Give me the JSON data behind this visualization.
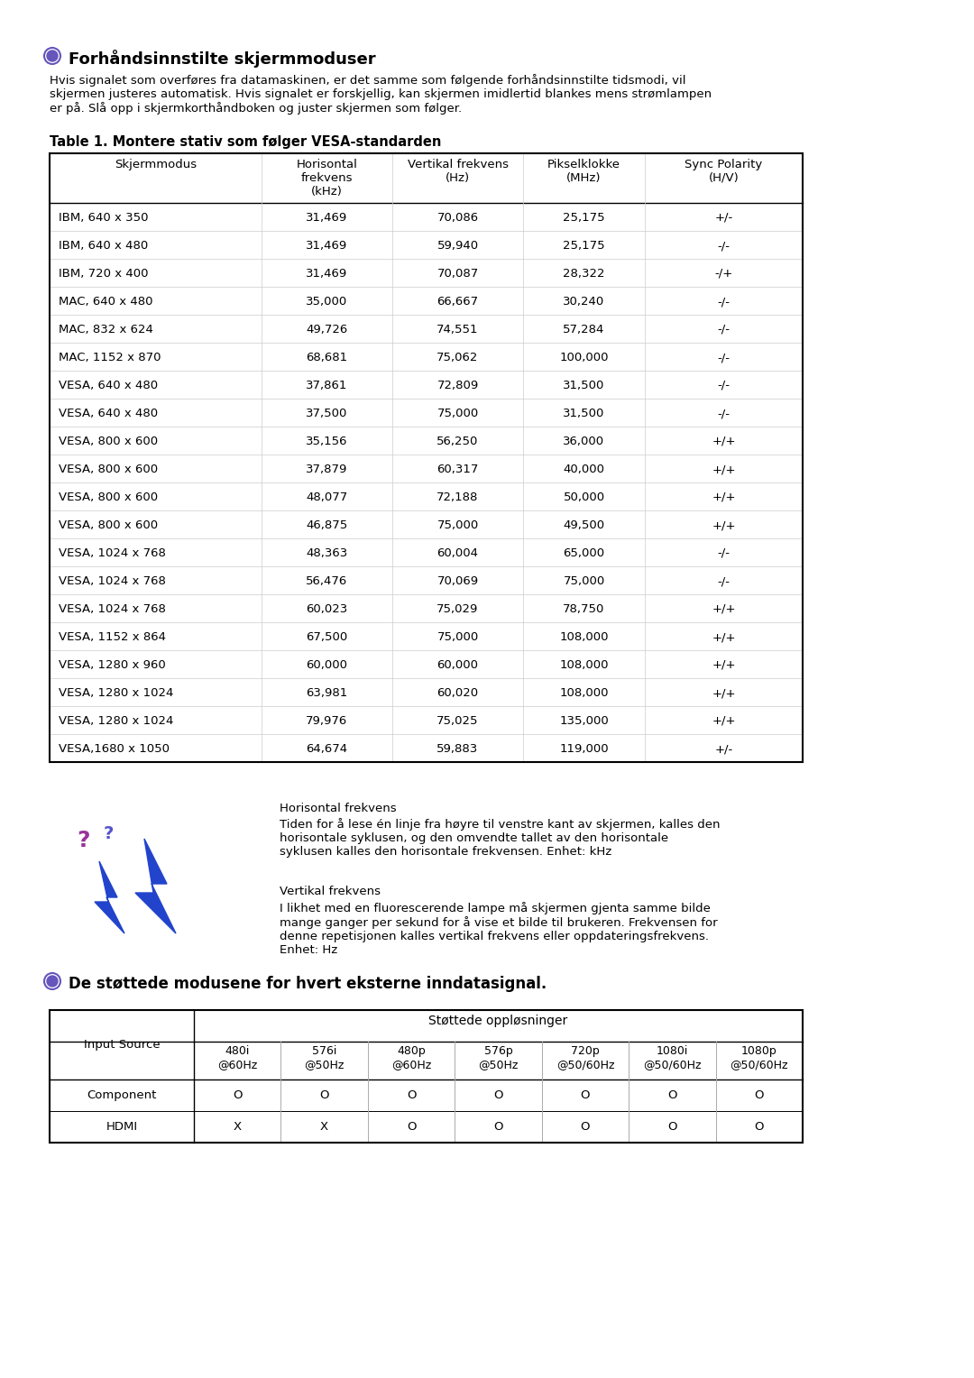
{
  "title1": "Forhåndsinnstilte skjermmoduser",
  "intro_text": "Hvis signalet som overføres fra datamaskinen, er det samme som følgende forhåndsinnstilte tidsmodi, vil\nskjermen justeres automatisk. Hvis signalet er forskjellig, kan skjermen imidlertid blankes mens strømlampen\ner på. Slå opp i skjermkorthåndboken og juster skjermen som følger.",
  "table_title": "Table 1. Montere stativ som følger VESA-standarden",
  "col_headers": [
    "Skjermmodus",
    "Horisontal\nfrekvens\n(kHz)",
    "Vertikal frekvens\n(Hz)",
    "Pikselklokke\n(MHz)",
    "Sync Polarity\n(H/V)"
  ],
  "table_rows": [
    [
      "IBM, 640 x 350",
      "31,469",
      "70,086",
      "25,175",
      "+/-"
    ],
    [
      "IBM, 640 x 480",
      "31,469",
      "59,940",
      "25,175",
      "-/-"
    ],
    [
      "IBM, 720 x 400",
      "31,469",
      "70,087",
      "28,322",
      "-/+"
    ],
    [
      "MAC, 640 x 480",
      "35,000",
      "66,667",
      "30,240",
      "-/-"
    ],
    [
      "MAC, 832 x 624",
      "49,726",
      "74,551",
      "57,284",
      "-/-"
    ],
    [
      "MAC, 1152 x 870",
      "68,681",
      "75,062",
      "100,000",
      "-/-"
    ],
    [
      "VESA, 640 x 480",
      "37,861",
      "72,809",
      "31,500",
      "-/-"
    ],
    [
      "VESA, 640 x 480",
      "37,500",
      "75,000",
      "31,500",
      "-/-"
    ],
    [
      "VESA, 800 x 600",
      "35,156",
      "56,250",
      "36,000",
      "+/+"
    ],
    [
      "VESA, 800 x 600",
      "37,879",
      "60,317",
      "40,000",
      "+/+"
    ],
    [
      "VESA, 800 x 600",
      "48,077",
      "72,188",
      "50,000",
      "+/+"
    ],
    [
      "VESA, 800 x 600",
      "46,875",
      "75,000",
      "49,500",
      "+/+"
    ],
    [
      "VESA, 1024 x 768",
      "48,363",
      "60,004",
      "65,000",
      "-/-"
    ],
    [
      "VESA, 1024 x 768",
      "56,476",
      "70,069",
      "75,000",
      "-/-"
    ],
    [
      "VESA, 1024 x 768",
      "60,023",
      "75,029",
      "78,750",
      "+/+"
    ],
    [
      "VESA, 1152 x 864",
      "67,500",
      "75,000",
      "108,000",
      "+/+"
    ],
    [
      "VESA, 1280 x 960",
      "60,000",
      "60,000",
      "108,000",
      "+/+"
    ],
    [
      "VESA, 1280 x 1024",
      "63,981",
      "60,020",
      "108,000",
      "+/+"
    ],
    [
      "VESA, 1280 x 1024",
      "79,976",
      "75,025",
      "135,000",
      "+/+"
    ],
    [
      "VESA,1680 x 1050",
      "64,674",
      "59,883",
      "119,000",
      "+/-"
    ]
  ],
  "section2_title": "De støttede modusene for hvert eksterne inndatasignal.",
  "hfreq_title": "Horisontal frekvens",
  "hfreq_text": "Tiden for å lese én linje fra høyre til venstre kant av skjermen, kalles den\nhorisontale syklusen, og den omvendte tallet av den horisontale\nsyklusen kalles den horisontale frekvensen. Enhet: kHz",
  "vfreq_title": "Vertikal frekvens",
  "vfreq_text": "I likhet med en fluorescerende lampe må skjermen gjenta samme bilde\nmange ganger per sekund for å vise et bilde til brukeren. Frekvensen for\ndenne repetisjonen kalles vertikal frekvens eller oppdateringsfrekvens.\nEnhet: Hz",
  "table2_header_top": "Støttede oppløsninger",
  "table2_col1": "Input Source",
  "table2_subcols": [
    "480i\n@60Hz",
    "576i\n@50Hz",
    "480p\n@60Hz",
    "576p\n@50Hz",
    "720p\n@50/60Hz",
    "1080i\n@50/60Hz",
    "1080p\n@50/60Hz"
  ],
  "table2_rows": [
    [
      "Component",
      "O",
      "O",
      "O",
      "O",
      "O",
      "O",
      "O"
    ],
    [
      "HDMI",
      "X",
      "X",
      "O",
      "O",
      "O",
      "O",
      "O"
    ]
  ],
  "bg_color": "#ffffff",
  "bullet_color": "#6655bb",
  "table_line_color": "#000000",
  "inner_line_color": "#cccccc"
}
